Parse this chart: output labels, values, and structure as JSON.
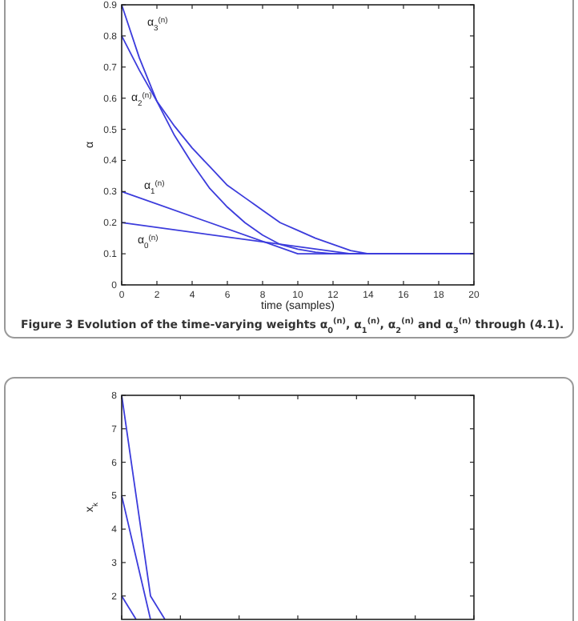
{
  "chart_data": [
    {
      "type": "line",
      "title": "Figure 3 Evolution of the time-varying weights α$_{0}$$^{(n)}$, α$_{1}$$^{(n)}$, α$_{2}$$^{(n)}$ and α$_{3}$$^{(n)}$ through (4.1).",
      "xlabel": "time (samples)",
      "ylabel": "α",
      "xlim": [
        0,
        20
      ],
      "xticks": [
        0,
        2,
        4,
        6,
        8,
        10,
        12,
        14,
        16,
        18,
        20
      ],
      "ylim": [
        0,
        0.9
      ],
      "yticks": [
        0,
        0.1,
        0.2,
        0.3,
        0.4,
        0.5,
        0.6,
        0.7,
        0.8,
        0.9
      ],
      "grid": false,
      "series": [
        {
          "name": "α$_{3}$$^{(n)}$",
          "color": "#3c3cdc",
          "x": [
            0,
            1,
            2,
            3,
            4,
            5,
            6,
            7,
            8,
            9,
            10,
            11,
            12,
            13,
            14,
            15,
            16,
            17,
            18,
            19,
            20
          ],
          "values": [
            0.9,
            0.73,
            0.59,
            0.48,
            0.39,
            0.31,
            0.25,
            0.2,
            0.16,
            0.13,
            0.115,
            0.105,
            0.1,
            0.1,
            0.1,
            0.1,
            0.1,
            0.1,
            0.1,
            0.1,
            0.1
          ]
        },
        {
          "name": "α$_{2}$$^{(n)}$",
          "color": "#3c3cdc",
          "x": [
            0,
            1,
            2,
            3,
            4,
            5,
            6,
            7,
            8,
            9,
            10,
            11,
            12,
            13,
            14,
            15,
            16,
            17,
            18,
            19,
            20
          ],
          "values": [
            0.8,
            0.69,
            0.59,
            0.51,
            0.44,
            0.38,
            0.32,
            0.28,
            0.24,
            0.2,
            0.175,
            0.15,
            0.13,
            0.11,
            0.1,
            0.1,
            0.1,
            0.1,
            0.1,
            0.1,
            0.1
          ]
        },
        {
          "name": "α$_{1}$$^{(n)}$",
          "color": "#3c3cdc",
          "x": [
            0,
            10,
            20
          ],
          "values": [
            0.3,
            0.1,
            0.1
          ]
        },
        {
          "name": "α$_{0}$$^{(n)}$",
          "color": "#3c3cdc",
          "x": [
            0,
            13,
            20
          ],
          "values": [
            0.2,
            0.1,
            0.1
          ]
        }
      ]
    },
    {
      "type": "line",
      "ylabel": "x$_{k}$",
      "categories": [
        null,
        null,
        null,
        null
      ],
      "ylim": [
        1.3,
        8
      ],
      "yticks": [
        2,
        3,
        4,
        5,
        6,
        7,
        8
      ],
      "tick_labels": "y",
      "grid": false,
      "series": [
        {
          "color": "#3c3cdc",
          "values": [
            8,
            5,
            2,
            1.3
          ]
        },
        {
          "color": "#3c3cdc",
          "values": [
            5,
            3.15,
            1.3,
            null
          ]
        },
        {
          "color": "#3c3cdc",
          "values": [
            2,
            1.3,
            null,
            null
          ]
        }
      ]
    }
  ]
}
